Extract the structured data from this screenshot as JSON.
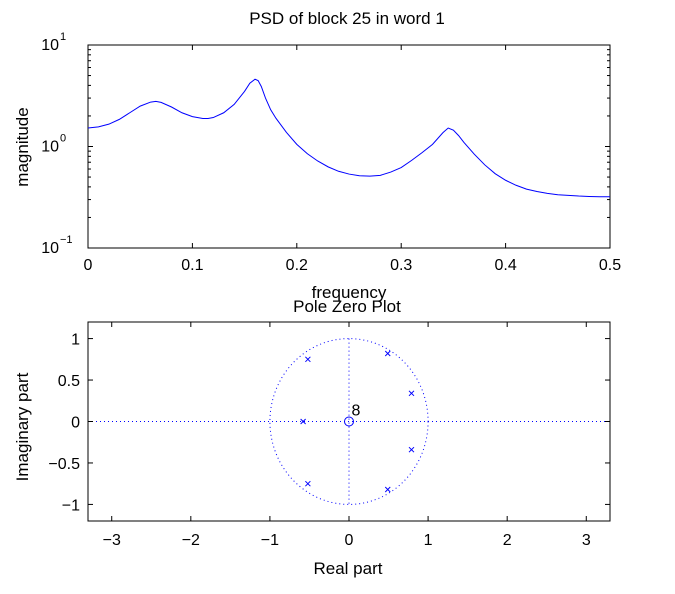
{
  "chart_data": [
    {
      "type": "line",
      "title": "PSD of block 25 in word 1",
      "xlabel": "frequency",
      "ylabel": "magnitude",
      "xlim": [
        0,
        0.5
      ],
      "ylim": [
        0.1,
        10
      ],
      "yscale": "log",
      "grid": false,
      "line_color": "#0000ff",
      "x_ticks": [
        "0",
        "0.1",
        "0.2",
        "0.3",
        "0.4",
        "0.5"
      ],
      "y_ticks": [
        {
          "base": "10",
          "exp": "1"
        },
        {
          "base": "10",
          "exp": "0"
        },
        {
          "base": "10",
          "exp": "−1"
        }
      ],
      "series": [
        {
          "x": [
            0,
            0.01,
            0.02,
            0.03,
            0.04,
            0.05,
            0.06,
            0.065,
            0.07,
            0.08,
            0.09,
            0.1,
            0.11,
            0.115,
            0.12,
            0.13,
            0.14,
            0.15,
            0.155,
            0.16,
            0.163,
            0.166,
            0.17,
            0.175,
            0.18,
            0.19,
            0.2,
            0.21,
            0.22,
            0.23,
            0.24,
            0.25,
            0.26,
            0.27,
            0.28,
            0.29,
            0.3,
            0.31,
            0.32,
            0.33,
            0.34,
            0.345,
            0.35,
            0.355,
            0.36,
            0.37,
            0.38,
            0.39,
            0.4,
            0.41,
            0.42,
            0.43,
            0.44,
            0.45,
            0.46,
            0.47,
            0.48,
            0.49,
            0.5
          ],
          "y": [
            1.52,
            1.56,
            1.66,
            1.85,
            2.15,
            2.5,
            2.74,
            2.78,
            2.72,
            2.45,
            2.15,
            1.97,
            1.89,
            1.89,
            1.93,
            2.15,
            2.6,
            3.5,
            4.2,
            4.6,
            4.45,
            3.9,
            3.0,
            2.3,
            1.9,
            1.38,
            1.05,
            0.85,
            0.72,
            0.63,
            0.57,
            0.535,
            0.515,
            0.51,
            0.52,
            0.56,
            0.62,
            0.73,
            0.87,
            1.05,
            1.37,
            1.52,
            1.45,
            1.28,
            1.1,
            0.84,
            0.66,
            0.54,
            0.465,
            0.415,
            0.38,
            0.36,
            0.345,
            0.335,
            0.33,
            0.325,
            0.322,
            0.32,
            0.32
          ]
        }
      ]
    },
    {
      "type": "scatter",
      "title": "Pole Zero Plot",
      "xlabel": "Real part",
      "ylabel": "Imaginary part",
      "xlim": [
        -3.3,
        3.3
      ],
      "ylim": [
        -1.2,
        1.2
      ],
      "grid": false,
      "marker_color": "#0000ff",
      "x_ticks": [
        "−3",
        "−2",
        "−1",
        "0",
        "1",
        "2",
        "3"
      ],
      "y_ticks": [
        "1",
        "0.5",
        "0",
        "−0.5",
        "−1"
      ],
      "unit_circle": true,
      "poles": [
        {
          "x": 0.49,
          "y": 0.82
        },
        {
          "x": 0.49,
          "y": -0.82
        },
        {
          "x": 0.79,
          "y": 0.34
        },
        {
          "x": 0.79,
          "y": -0.34
        },
        {
          "x": -0.52,
          "y": 0.75
        },
        {
          "x": -0.52,
          "y": -0.75
        },
        {
          "x": -0.58,
          "y": 0.0
        }
      ],
      "zeros": [
        {
          "x": 0.0,
          "y": 0.0,
          "multiplicity": "8"
        }
      ]
    }
  ]
}
